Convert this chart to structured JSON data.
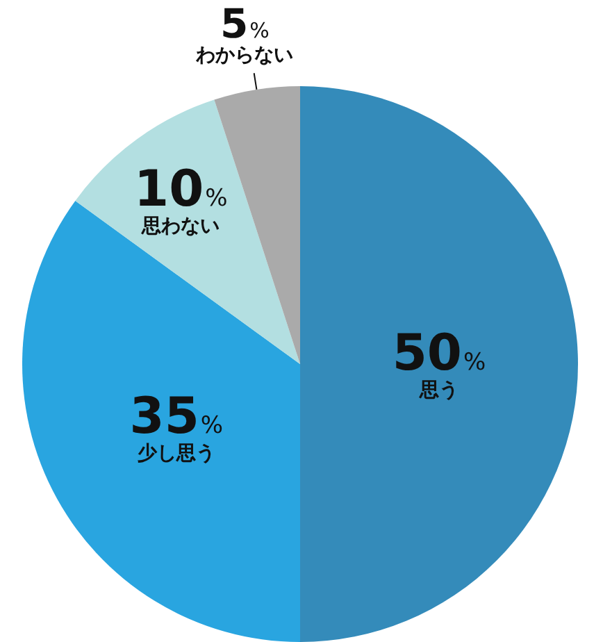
{
  "chart_data": {
    "type": "pie",
    "categories": [
      "思う",
      "少し思う",
      "思わない",
      "わからない"
    ],
    "values": [
      50,
      35,
      10,
      5
    ],
    "colors": [
      "#348bba",
      "#29a5e0",
      "#b3dfe1",
      "#aaaaaa"
    ],
    "value_labels": [
      "50%",
      "35%",
      "10%",
      "5%"
    ]
  }
}
